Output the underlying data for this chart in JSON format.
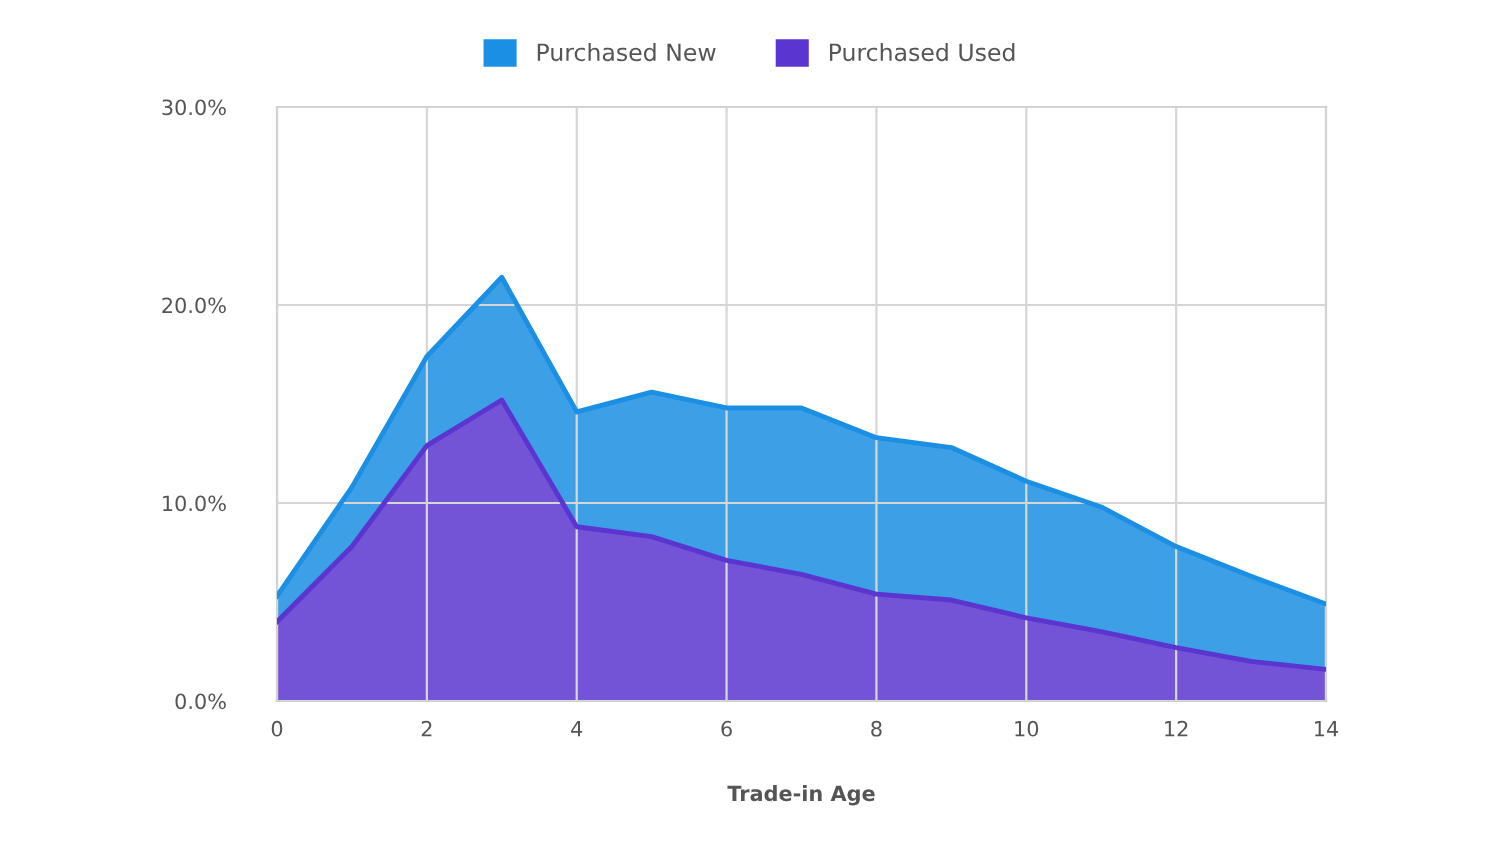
{
  "chart_data": {
    "type": "area",
    "stacked": true,
    "x": [
      0,
      1,
      2,
      3,
      4,
      5,
      6,
      7,
      8,
      9,
      10,
      11,
      12,
      13,
      14
    ],
    "series": [
      {
        "name": "Purchased Used",
        "color": "#5b35cf",
        "values": [
          4.0,
          7.8,
          12.9,
          15.2,
          8.8,
          8.3,
          7.1,
          6.4,
          5.4,
          5.1,
          4.2,
          3.5,
          2.7,
          2.0,
          1.6
        ]
      },
      {
        "name": "Purchased New",
        "color": "#1b8fe3",
        "values": [
          1.3,
          3.0,
          4.5,
          6.2,
          5.8,
          7.3,
          7.7,
          8.4,
          7.9,
          7.7,
          6.9,
          6.3,
          5.1,
          4.3,
          3.3
        ]
      }
    ],
    "xlabel": "Trade-in Age",
    "xlim": [
      0,
      14
    ],
    "xticks": [
      0,
      2,
      4,
      6,
      8,
      10,
      12,
      14
    ],
    "ylim": [
      0,
      30
    ],
    "yticks": [
      {
        "value": 0,
        "label": "0.0%"
      },
      {
        "value": 10,
        "label": "10.0%"
      },
      {
        "value": 20,
        "label": "20.0%"
      },
      {
        "value": 30,
        "label": "30.0%"
      }
    ],
    "grid": true,
    "legend": "top",
    "line_style": "solid"
  }
}
